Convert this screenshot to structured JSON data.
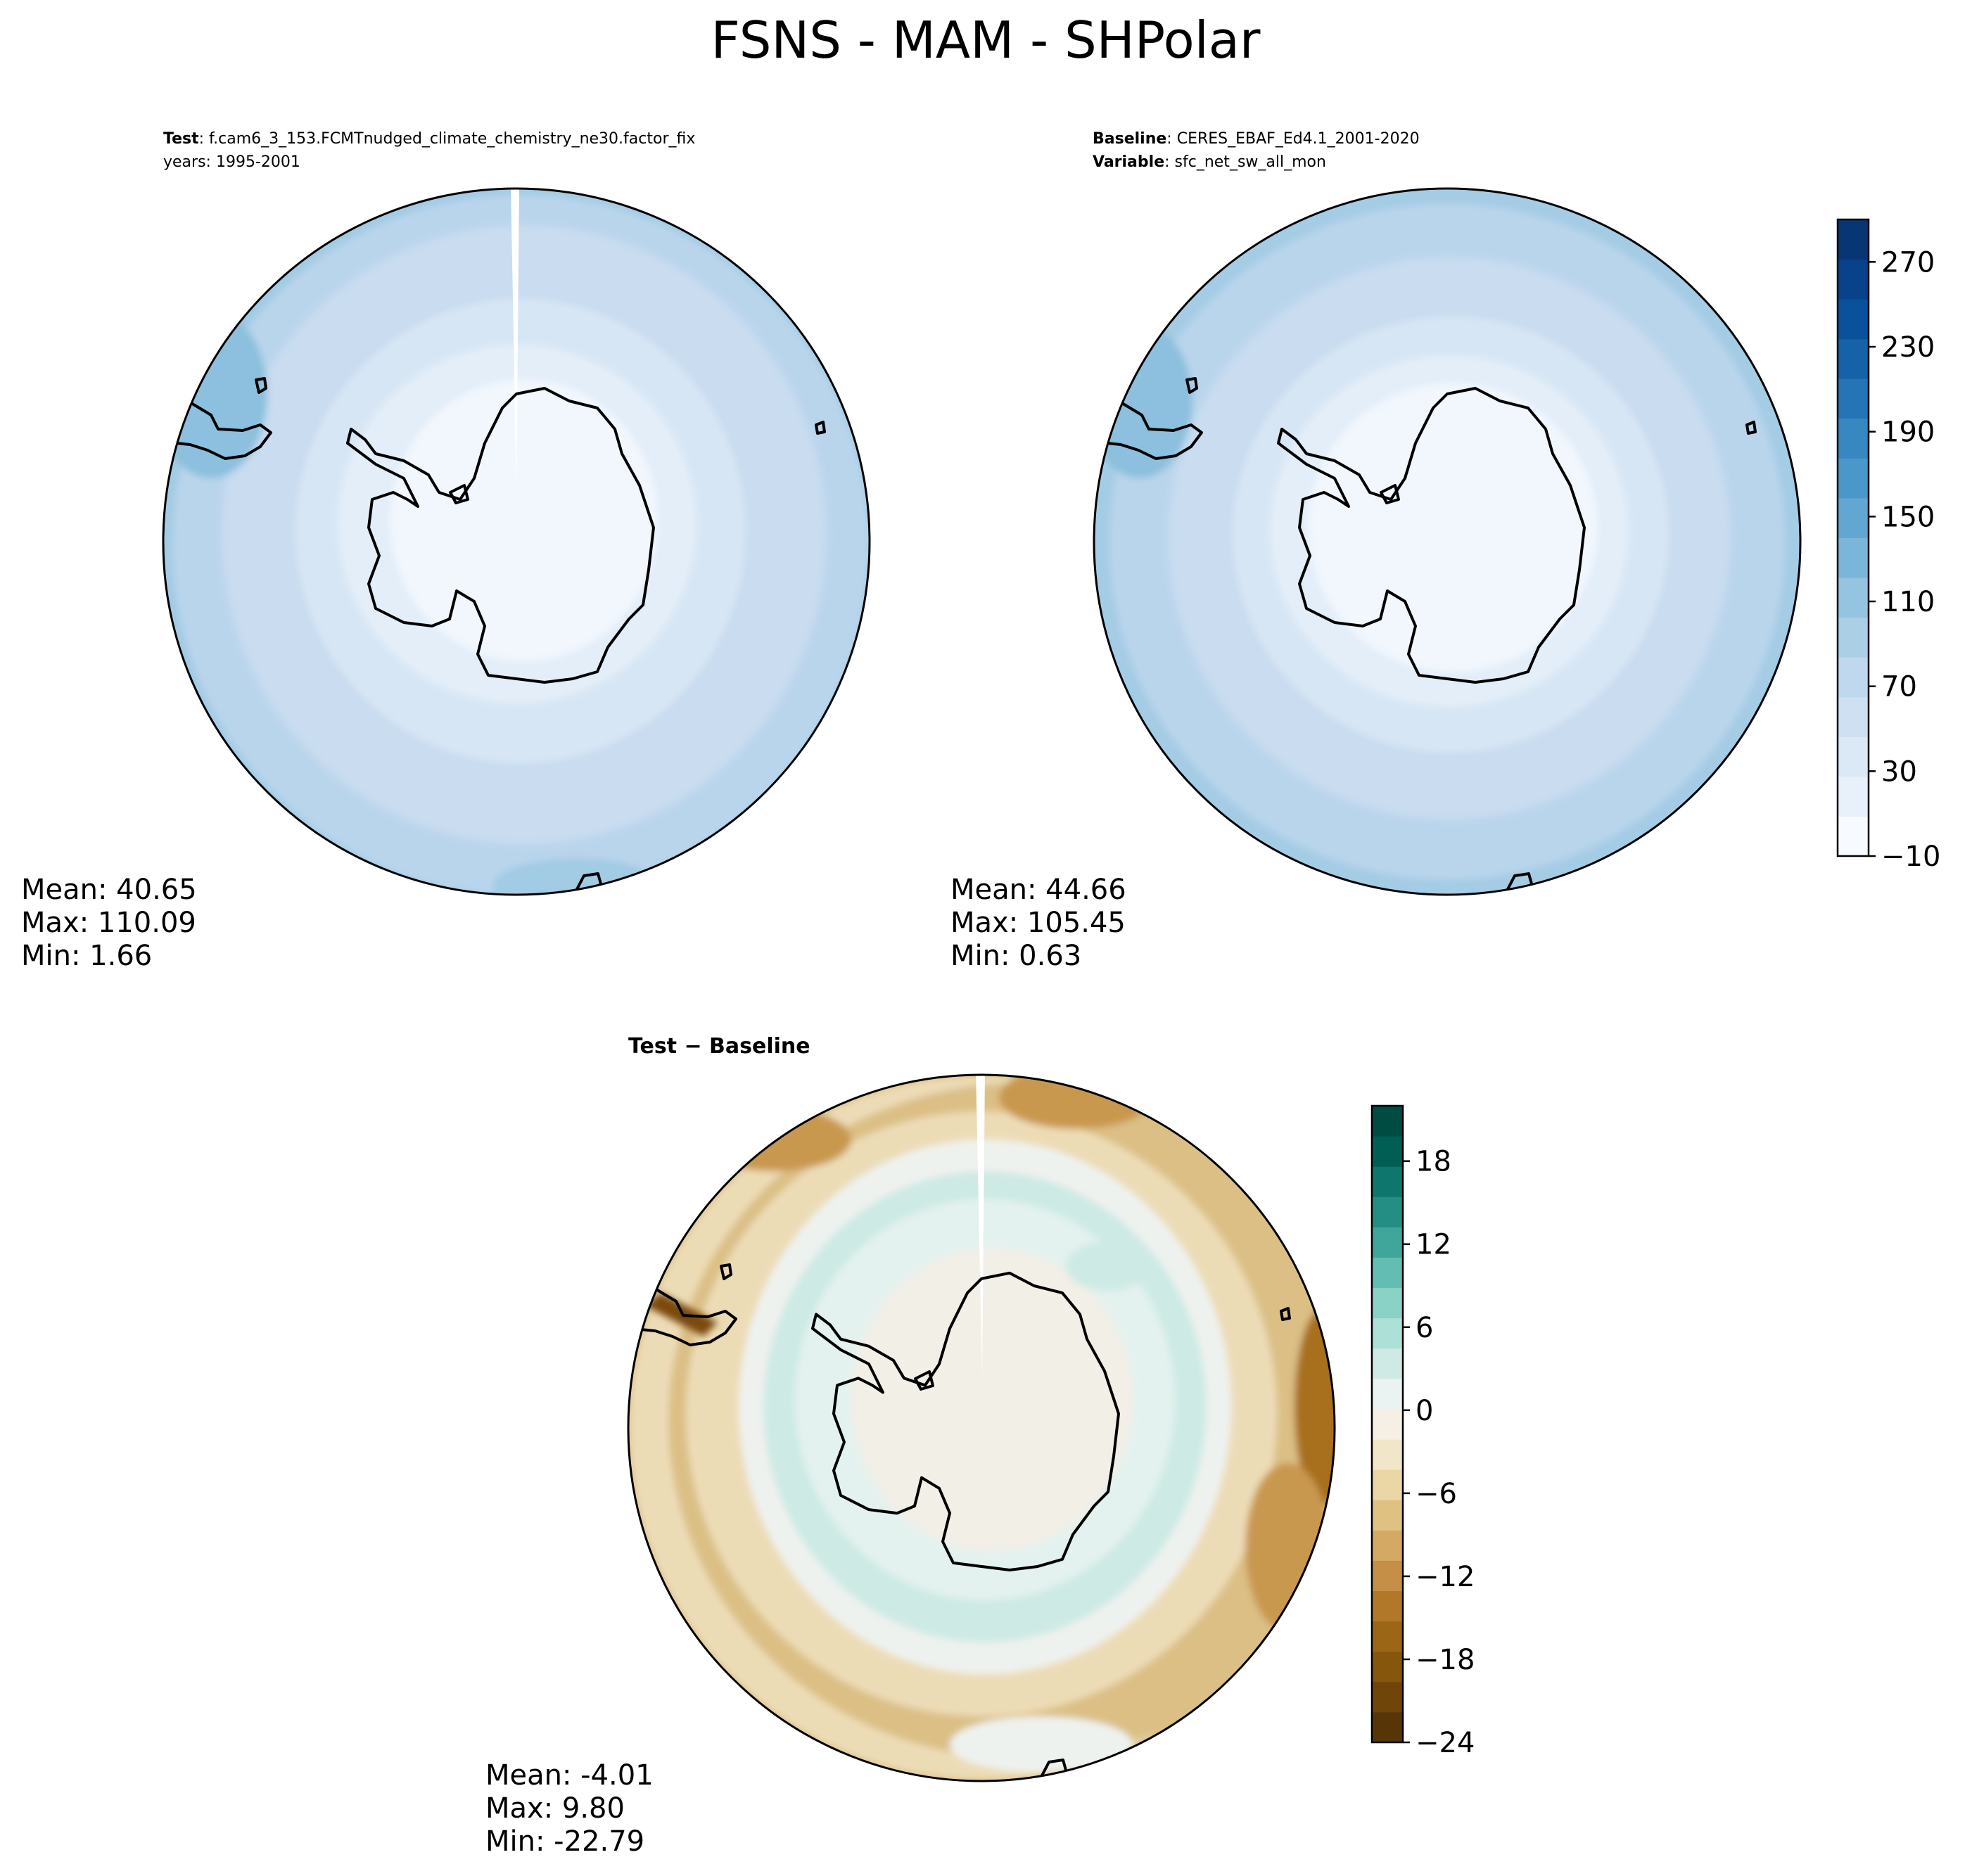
{
  "title": "FSNS - MAM - SHPolar",
  "panels": [
    {
      "id": "test",
      "header_lines": [
        {
          "bold": "Test",
          "text": ": f.cam6_3_153.FCMTnudged_climate_chemistry_ne30.factor_fix"
        },
        {
          "bold": "",
          "text": "years: 1995-2001"
        }
      ],
      "stats": {
        "mean": "Mean: 40.65",
        "max": "Max: 110.09",
        "min": "Min:  1.66"
      }
    },
    {
      "id": "baseline",
      "header_lines": [
        {
          "bold": "Baseline",
          "text": ": CERES_EBAF_Ed4.1_2001-2020"
        },
        {
          "bold": "Variable",
          "text": ": sfc_net_sw_all_mon"
        }
      ],
      "stats": {
        "mean": "Mean: 44.66",
        "max": "Max: 105.45",
        "min": "Min:  0.63"
      }
    },
    {
      "id": "difference",
      "header_lines": [
        {
          "bold": "Test − Baseline",
          "text": ""
        }
      ],
      "stats": {
        "mean": "Mean: -4.01",
        "max": "Max:  9.80",
        "min": "Min: -22.79"
      }
    }
  ],
  "colorbars": {
    "main": {
      "ticks": [
        "270",
        "230",
        "190",
        "150",
        "110",
        "70",
        "30",
        "−10"
      ],
      "range": [
        -10,
        290
      ],
      "colors": [
        "#f7fbff",
        "#e8f1fa",
        "#dbe9f6",
        "#cee0f2",
        "#bfd8ed",
        "#abd0e6",
        "#94c4df",
        "#7ab6d9",
        "#61a7d2",
        "#4a98c9",
        "#3787c0",
        "#2574b6",
        "#1562a9",
        "#0a519b",
        "#08428a",
        "#083574"
      ]
    },
    "diff": {
      "ticks": [
        "18",
        "12",
        "6",
        "0",
        "−6",
        "−12",
        "−18",
        "−24"
      ],
      "range": [
        -24,
        22
      ],
      "colors": [
        "#573506",
        "#6f4509",
        "#85560c",
        "#9b6616",
        "#b1782a",
        "#c58f47",
        "#d4a963",
        "#dfc182",
        "#ead7a5",
        "#f2e6c8",
        "#f5efe4",
        "#eaf3f1",
        "#cfeae5",
        "#ade0d7",
        "#8ad1c6",
        "#64bdb2",
        "#40a69b",
        "#248e84",
        "#0e766c",
        "#005e55",
        "#004c42"
      ]
    }
  },
  "map_colors": {
    "test": [
      "#f2f7fd",
      "#e3eef9",
      "#d7e6f4",
      "#c9dcf0",
      "#b9d5ec",
      "#a2cbe4",
      "#8cc0de"
    ],
    "baseline": [
      "#f2f7fd",
      "#e3eef9",
      "#d7e6f4",
      "#c9dcf0",
      "#b9d5ec",
      "#a5cce5",
      "#8cc0de"
    ],
    "difference": [
      "#f2efe6",
      "#e4f2ef",
      "#cdeae4",
      "#eef2ef",
      "#ecdcb6",
      "#dbbf85",
      "#c9984f",
      "#a8701e"
    ]
  }
}
